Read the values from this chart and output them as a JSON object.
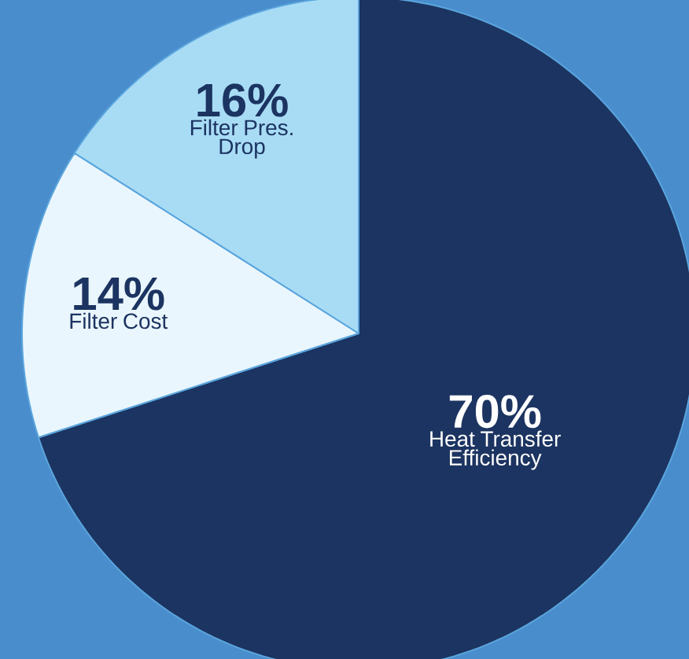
{
  "chart_data": {
    "type": "pie",
    "categories": [
      "Heat Transfer Efficiency",
      "Filter Cost",
      "Filter Pres. Drop"
    ],
    "values": [
      70,
      14,
      16
    ],
    "colors": [
      "#1c3461",
      "#eaf6fd",
      "#a8dcf5"
    ],
    "value_labels": [
      "70%",
      "14%",
      "16%"
    ]
  }
}
